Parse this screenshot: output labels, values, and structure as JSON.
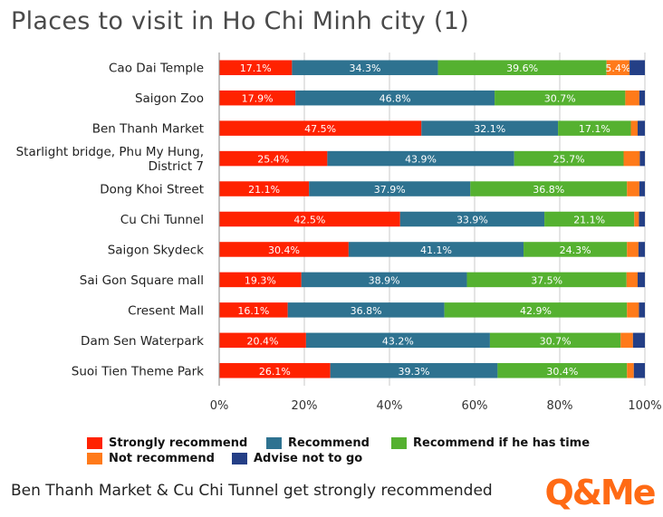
{
  "title": "Places to visit in Ho Chi Minh city (1)",
  "caption": "Ben Thanh Market & Cu Chi Tunnel get strongly recommended",
  "logo_text": "Q&Me",
  "colors": {
    "strongly": "#ff2200",
    "recommend": "#2e7290",
    "iftime": "#55b130",
    "not": "#ff7a1a",
    "advise": "#243f86",
    "logo": "#ff6a14"
  },
  "chart_data": {
    "type": "bar",
    "orientation": "horizontal",
    "stacked": true,
    "categories": [
      "Cao Dai Temple",
      "Saigon Zoo",
      "Ben Thanh Market",
      "Starlight bridge, Phu My Hung,\nDistrict 7",
      "Dong Khoi Street",
      "Cu Chi Tunnel",
      "Saigon Skydeck",
      "Sai Gon Square mall",
      "Cresent Mall",
      "Dam Sen Waterpark",
      "Suoi Tien Theme Park"
    ],
    "series": [
      {
        "name": "Strongly recommend",
        "color": "#ff2200",
        "values": [
          17.1,
          17.9,
          47.5,
          25.4,
          21.1,
          42.5,
          30.4,
          19.3,
          16.1,
          20.4,
          26.1
        ]
      },
      {
        "name": "Recommend",
        "color": "#2e7290",
        "values": [
          34.3,
          46.8,
          32.1,
          43.9,
          37.9,
          33.9,
          41.1,
          38.9,
          36.8,
          43.2,
          39.3
        ]
      },
      {
        "name": "Recommend if he has time",
        "color": "#55b130",
        "values": [
          39.6,
          30.7,
          17.1,
          25.7,
          36.8,
          21.1,
          24.3,
          37.5,
          42.9,
          30.7,
          30.4
        ]
      },
      {
        "name": "Not recommend",
        "color": "#ff7a1a",
        "values": [
          5.4,
          3.3,
          1.6,
          3.8,
          2.9,
          1.1,
          2.7,
          2.6,
          2.8,
          2.9,
          1.6
        ]
      },
      {
        "name": "Advise not to go",
        "color": "#243f86",
        "values": [
          3.6,
          1.3,
          1.7,
          1.2,
          1.3,
          1.4,
          1.5,
          1.7,
          1.4,
          2.8,
          2.6
        ]
      }
    ],
    "data_labels": [
      [
        "17.1%",
        "34.3%",
        "39.6%",
        "5.4%",
        ""
      ],
      [
        "17.9%",
        "46.8%",
        "30.7%",
        "",
        ""
      ],
      [
        "47.5%",
        "32.1%",
        "17.1%",
        "",
        ""
      ],
      [
        "25.4%",
        "43.9%",
        "25.7%",
        "",
        ""
      ],
      [
        "21.1%",
        "37.9%",
        "36.8%",
        "",
        ""
      ],
      [
        "42.5%",
        "33.9%",
        "21.1%",
        "",
        ""
      ],
      [
        "30.4%",
        "41.1%",
        "24.3%",
        "",
        ""
      ],
      [
        "19.3%",
        "38.9%",
        "37.5%",
        "",
        ""
      ],
      [
        "16.1%",
        "36.8%",
        "42.9%",
        "",
        ""
      ],
      [
        "20.4%",
        "43.2%",
        "30.7%",
        "",
        ""
      ],
      [
        "26.1%",
        "39.3%",
        "30.4%",
        "",
        ""
      ]
    ],
    "x_ticks": [
      "0%",
      "20%",
      "40%",
      "60%",
      "80%",
      "100%"
    ],
    "xlim": [
      0,
      100
    ],
    "grid": true,
    "legend_position": "bottom"
  }
}
